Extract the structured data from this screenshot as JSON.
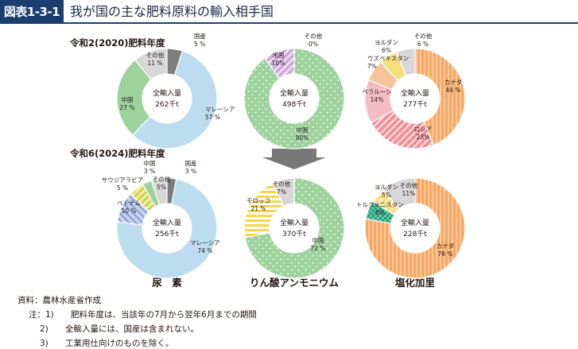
{
  "header": {
    "figure_number": "図表1-3-1",
    "title": "我が国の主な肥料原料の輸入相手国"
  },
  "row_labels": [
    "令和2(2020)肥料年度",
    "令和6(2024)肥料年度"
  ],
  "column_labels": [
    "尿　素",
    "りん酸アンモニウム",
    "塩化加里"
  ],
  "center_caption": "全輸入量",
  "footnotes": {
    "source": "資料：農林水産省作成",
    "note_prefix": "注：",
    "notes": [
      {
        "num": "1)",
        "text": "肥料年度は、当該年の7月から翌年6月までの期間"
      },
      {
        "num": "2)",
        "text": "全輸入量には、国産は含まれない。"
      },
      {
        "num": "3)",
        "text": "工業用仕向けのものを除く。"
      }
    ]
  },
  "colors": {
    "malaysia": "#bcdcf0",
    "china": "#9ed29c",
    "other": "#d7d7d7",
    "domestic": "#7d7d7d",
    "vietnam": "#c6d3f0",
    "saudi_arabia": "#ecee8d",
    "us": "#cfa7dc",
    "morocco": "#f7d64a",
    "canada": "#f7a764",
    "russia": "#f38e97",
    "belarus": "#f3bcc3",
    "uzbekistan": "#f5c49a",
    "jordan": "#f3e07a",
    "turkmenistan": "#62c9a9",
    "arrow": "#777777",
    "header_navy": "#1b3e6f"
  },
  "chart_data": [
    {
      "type": "pie",
      "title": "尿　素",
      "subtitle": "令和2(2020)肥料年度",
      "total": "262千t",
      "slices": [
        {
          "label": "国産",
          "value": 5,
          "pct": "5 %",
          "color": "domestic"
        },
        {
          "label": "マレーシア",
          "value": 57,
          "pct": "57 %",
          "color": "malaysia"
        },
        {
          "label": "中国",
          "value": 27,
          "pct": "27 %",
          "color": "china"
        },
        {
          "label": "その他",
          "value": 11,
          "pct": "11 %",
          "color": "other"
        }
      ]
    },
    {
      "type": "pie",
      "title": "りん酸アンモニウム",
      "subtitle": "令和2(2020)肥料年度",
      "total": "498千t",
      "slices": [
        {
          "label": "その他",
          "value": 0,
          "pct": "0%",
          "color": "other"
        },
        {
          "label": "中国",
          "value": 90,
          "pct": "90%",
          "color": "china"
        },
        {
          "label": "米国",
          "value": 10,
          "pct": "10%",
          "color": "us"
        }
      ]
    },
    {
      "type": "pie",
      "title": "塩化加里",
      "subtitle": "令和2(2020)肥料年度",
      "total": "277千t",
      "slices": [
        {
          "label": "カナダ",
          "value": 44,
          "pct": "44 %",
          "color": "canada"
        },
        {
          "label": "ロシア",
          "value": 23,
          "pct": "23%",
          "color": "russia"
        },
        {
          "label": "ベラルーシ",
          "value": 14,
          "pct": "14%",
          "color": "belarus"
        },
        {
          "label": "ウズベキスタン",
          "value": 7,
          "pct": "7%",
          "color": "uzbekistan"
        },
        {
          "label": "ヨルダン",
          "value": 6,
          "pct": "6%",
          "color": "jordan"
        },
        {
          "label": "その他",
          "value": 6,
          "pct": "6 %",
          "color": "other"
        }
      ]
    },
    {
      "type": "pie",
      "title": "尿　素",
      "subtitle": "令和6(2024)肥料年度",
      "total": "256千t",
      "slices": [
        {
          "label": "国産",
          "value": 3,
          "pct": "3 %",
          "color": "domestic"
        },
        {
          "label": "マレーシア",
          "value": 74,
          "pct": "74 %",
          "color": "malaysia"
        },
        {
          "label": "ベトナム",
          "value": 10,
          "pct": "10 %",
          "color": "vietnam"
        },
        {
          "label": "サウジアラビア",
          "value": 5,
          "pct": "5 %",
          "color": "saudi_arabia"
        },
        {
          "label": "中国",
          "value": 3,
          "pct": "3 %",
          "color": "china"
        },
        {
          "label": "その他",
          "value": 5,
          "pct": "5%",
          "color": "other"
        }
      ]
    },
    {
      "type": "pie",
      "title": "りん酸アンモニウム",
      "subtitle": "令和6(2024)肥料年度",
      "total": "370千t",
      "slices": [
        {
          "label": "中国",
          "value": 72,
          "pct": "72 %",
          "color": "china"
        },
        {
          "label": "モロッコ",
          "value": 21,
          "pct": "21 %",
          "color": "morocco"
        },
        {
          "label": "その他",
          "value": 7,
          "pct": "7%",
          "color": "other"
        }
      ]
    },
    {
      "type": "pie",
      "title": "塩化加里",
      "subtitle": "令和6(2024)肥料年度",
      "total": "228千t",
      "slices": [
        {
          "label": "カナダ",
          "value": 78,
          "pct": "78 %",
          "color": "canada"
        },
        {
          "label": "トルクメニスタン",
          "value": 6,
          "pct": "6%",
          "color": "turkmenistan"
        },
        {
          "label": "ヨルダン",
          "value": 5,
          "pct": "5%",
          "color": "jordan"
        },
        {
          "label": "その他",
          "value": 11,
          "pct": "11%",
          "color": "other"
        }
      ]
    }
  ]
}
